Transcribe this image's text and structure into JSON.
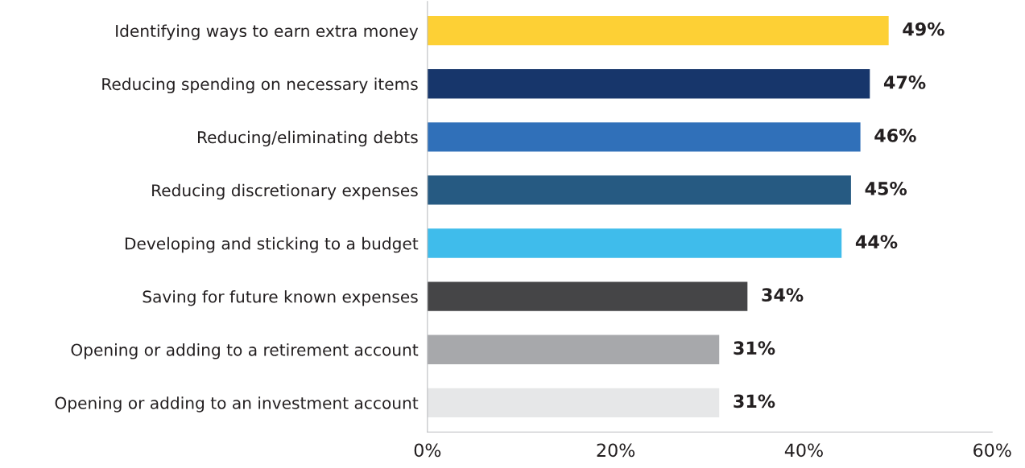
{
  "chart_data": {
    "type": "bar",
    "orientation": "horizontal",
    "categories": [
      "Identifying ways to earn extra money",
      "Reducing spending on necessary items",
      "Reducing/eliminating debts",
      "Reducing discretionary expenses",
      "Developing and sticking to a budget",
      "Saving for future known expenses",
      "Opening or adding to a retirement account",
      "Opening or adding to an investment account"
    ],
    "values": [
      49,
      47,
      46,
      45,
      44,
      34,
      31,
      31
    ],
    "colors": [
      "#fdd035",
      "#17366b",
      "#3070b9",
      "#265a82",
      "#3fbceb",
      "#454547",
      "#a7a8ab",
      "#e6e7e8"
    ],
    "value_labels": [
      "49%",
      "47%",
      "46%",
      "45%",
      "44%",
      "34%",
      "31%",
      "31%"
    ],
    "xlim": [
      0,
      60
    ],
    "xticks": [
      {
        "value": 0,
        "label": "0%"
      },
      {
        "value": 20,
        "label": "20%"
      },
      {
        "value": 40,
        "label": "40%"
      },
      {
        "value": 60,
        "label": "60%"
      }
    ],
    "grid": false,
    "legend": false
  }
}
